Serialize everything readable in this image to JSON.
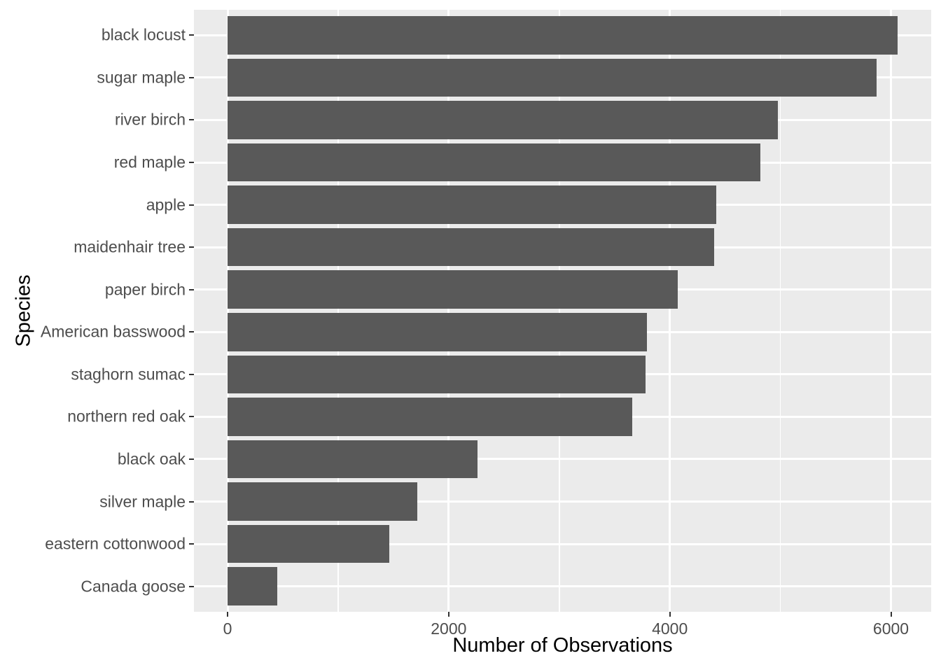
{
  "chart_data": {
    "type": "bar",
    "orientation": "horizontal",
    "title": "",
    "xlabel": "Number of Observations",
    "ylabel": "Species",
    "categories": [
      "black locust",
      "sugar maple",
      "river birch",
      "red maple",
      "apple",
      "maidenhair tree",
      "paper birch",
      "American basswood",
      "staghorn sumac",
      "northern red oak",
      "black oak",
      "silver maple",
      "eastern cottonwood",
      "Canada goose"
    ],
    "values": [
      6060,
      5870,
      4980,
      4820,
      4420,
      4400,
      4070,
      3790,
      3780,
      3660,
      2260,
      1715,
      1460,
      450
    ],
    "x_ticks": [
      0,
      2000,
      4000,
      6000
    ],
    "x_tick_labels": [
      "0",
      "2000",
      "4000",
      "6000"
    ],
    "x_minor_ticks": [
      1000,
      3000,
      5000
    ],
    "xlim": [
      -304,
      6364
    ],
    "bar_width_fraction": 0.9,
    "categorical_axis_expansion": 0.6,
    "grid": "vertical major + minor, horizontal major at category centers",
    "legend_position": "none",
    "colors": {
      "bar_fill": "#595959",
      "panel_background": "#EBEBEB",
      "gridline": "#FFFFFF",
      "tick_label": "#4D4D4D",
      "axis_title": "#000000",
      "tick_mark": "#333333",
      "page_background": "#FFFFFF"
    }
  }
}
